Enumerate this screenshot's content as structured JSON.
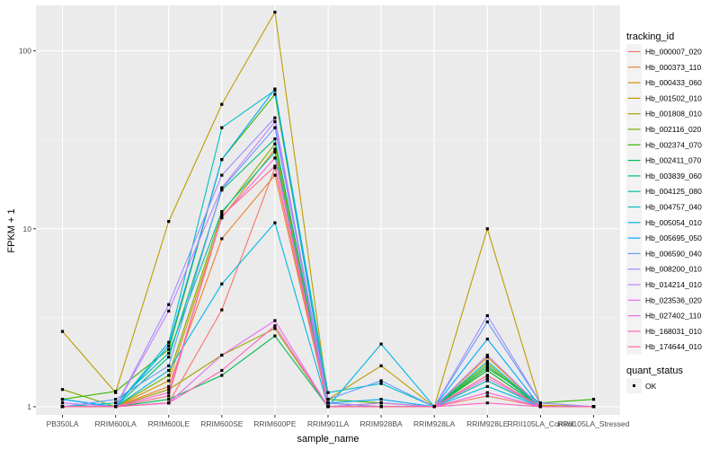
{
  "chart_data": {
    "type": "line",
    "title": "",
    "xlabel": "sample_name",
    "ylabel": "FPKM + 1",
    "y_scale": "log10",
    "ylim": [
      0.9,
      180
    ],
    "y_ticks": [
      {
        "value": 1,
        "label": "1"
      },
      {
        "value": 10,
        "label": "10"
      },
      {
        "value": 100,
        "label": "100"
      }
    ],
    "grid": true,
    "legend_position": "right",
    "categories": [
      "PB350LA",
      "RRIM600LA",
      "RRIM600LE",
      "RRIM600SE",
      "RRIM600PE",
      "RRIM901LA",
      "RRIM928BA",
      "RRIM928LA",
      "RRIM928LE",
      "RRII105LA_Control",
      "RRII105LA_Stressed"
    ],
    "legend_title": "tracking_id",
    "shape_legend": {
      "title": "quant_status",
      "items": [
        "OK"
      ]
    },
    "series": [
      {
        "name": "Hb_000007_020",
        "color": "#F8766D",
        "values": [
          1.0,
          1.0,
          1.05,
          3.5,
          22,
          1.0,
          1.0,
          1.0,
          1.15,
          1.0,
          1.0
        ]
      },
      {
        "name": "Hb_000373_110",
        "color": "#EA8331",
        "values": [
          1.0,
          1.0,
          1.3,
          8.8,
          20,
          1.0,
          1.0,
          1.0,
          1.6,
          1.0,
          1.0
        ]
      },
      {
        "name": "Hb_000433_060",
        "color": "#D89000",
        "values": [
          1.0,
          1.0,
          1.4,
          11.5,
          28,
          1.0,
          1.0,
          1.0,
          1.9,
          1.0,
          1.0
        ]
      },
      {
        "name": "Hb_001502_010",
        "color": "#C09B00",
        "values": [
          2.65,
          1.2,
          11.0,
          50,
          165,
          1.1,
          1.7,
          1.0,
          10.0,
          1.02,
          1.0
        ]
      },
      {
        "name": "Hb_001808_010",
        "color": "#A3A500",
        "values": [
          1.0,
          1.0,
          1.25,
          1.95,
          2.75,
          1.0,
          1.05,
          1.0,
          1.5,
          1.0,
          1.0
        ]
      },
      {
        "name": "Hb_002116_020",
        "color": "#7CAE00",
        "values": [
          1.25,
          1.0,
          1.5,
          12.2,
          30,
          1.05,
          1.0,
          1.0,
          1.75,
          1.0,
          1.0
        ]
      },
      {
        "name": "Hb_002374_070",
        "color": "#39B600",
        "values": [
          1.1,
          1.22,
          2.1,
          24.5,
          57,
          1.1,
          1.05,
          1.0,
          1.65,
          1.05,
          1.1
        ]
      },
      {
        "name": "Hb_002411_070",
        "color": "#00BB4E",
        "values": [
          1.0,
          1.0,
          1.1,
          1.5,
          2.5,
          1.0,
          1.0,
          1.0,
          1.6,
          1.0,
          1.0
        ]
      },
      {
        "name": "Hb_003839_060",
        "color": "#00BF7D",
        "values": [
          1.0,
          1.0,
          1.9,
          16.5,
          32,
          1.05,
          1.0,
          1.0,
          1.7,
          1.0,
          1.0
        ]
      },
      {
        "name": "Hb_004125_080",
        "color": "#00C1A3",
        "values": [
          1.0,
          1.05,
          2.0,
          12.5,
          27,
          1.0,
          1.0,
          1.0,
          1.4,
          1.0,
          1.0
        ]
      },
      {
        "name": "Hb_004757_040",
        "color": "#00BFC4",
        "values": [
          1.1,
          1.0,
          2.3,
          37,
          60,
          1.2,
          1.35,
          1.0,
          1.8,
          1.0,
          1.0
        ]
      },
      {
        "name": "Hb_005054_010",
        "color": "#00B8E7",
        "values": [
          1.0,
          1.0,
          1.6,
          4.9,
          10.8,
          1.0,
          2.25,
          1.0,
          1.3,
          1.0,
          1.0
        ]
      },
      {
        "name": "Hb_005695_050",
        "color": "#00A9FF",
        "values": [
          1.1,
          1.0,
          2.2,
          24.5,
          61,
          1.05,
          1.1,
          1.0,
          2.4,
          1.0,
          1.0
        ]
      },
      {
        "name": "Hb_006590_040",
        "color": "#619CFF",
        "values": [
          1.0,
          1.1,
          1.7,
          16.8,
          37,
          1.1,
          1.4,
          1.0,
          3.0,
          1.05,
          1.0
        ]
      },
      {
        "name": "Hb_008200_010",
        "color": "#9F8CFF",
        "values": [
          1.0,
          1.0,
          3.75,
          20,
          42,
          1.05,
          1.0,
          1.0,
          3.25,
          1.05,
          1.0
        ]
      },
      {
        "name": "Hb_014214_010",
        "color": "#C77CFF",
        "values": [
          1.05,
          1.0,
          3.45,
          17,
          40,
          1.0,
          1.05,
          1.0,
          1.95,
          1.0,
          1.0
        ]
      },
      {
        "name": "Hb_023536_020",
        "color": "#E76BF3",
        "values": [
          1.0,
          1.0,
          1.05,
          1.95,
          3.05,
          1.0,
          1.0,
          1.0,
          1.45,
          1.0,
          1.0
        ]
      },
      {
        "name": "Hb_027402_110",
        "color": "#F763E0",
        "values": [
          1.0,
          1.0,
          1.2,
          11.6,
          25,
          1.0,
          1.0,
          1.0,
          1.2,
          1.0,
          1.0
        ]
      },
      {
        "name": "Hb_168031_010",
        "color": "#FF62BC",
        "values": [
          1.0,
          1.0,
          1.05,
          1.6,
          2.85,
          1.0,
          1.0,
          1.0,
          1.05,
          1.0,
          1.0
        ]
      },
      {
        "name": "Hb_174644_010",
        "color": "#FF6C91",
        "values": [
          1.0,
          1.0,
          1.15,
          11.8,
          22.5,
          1.0,
          1.0,
          1.0,
          1.5,
          1.0,
          1.0
        ]
      }
    ]
  }
}
